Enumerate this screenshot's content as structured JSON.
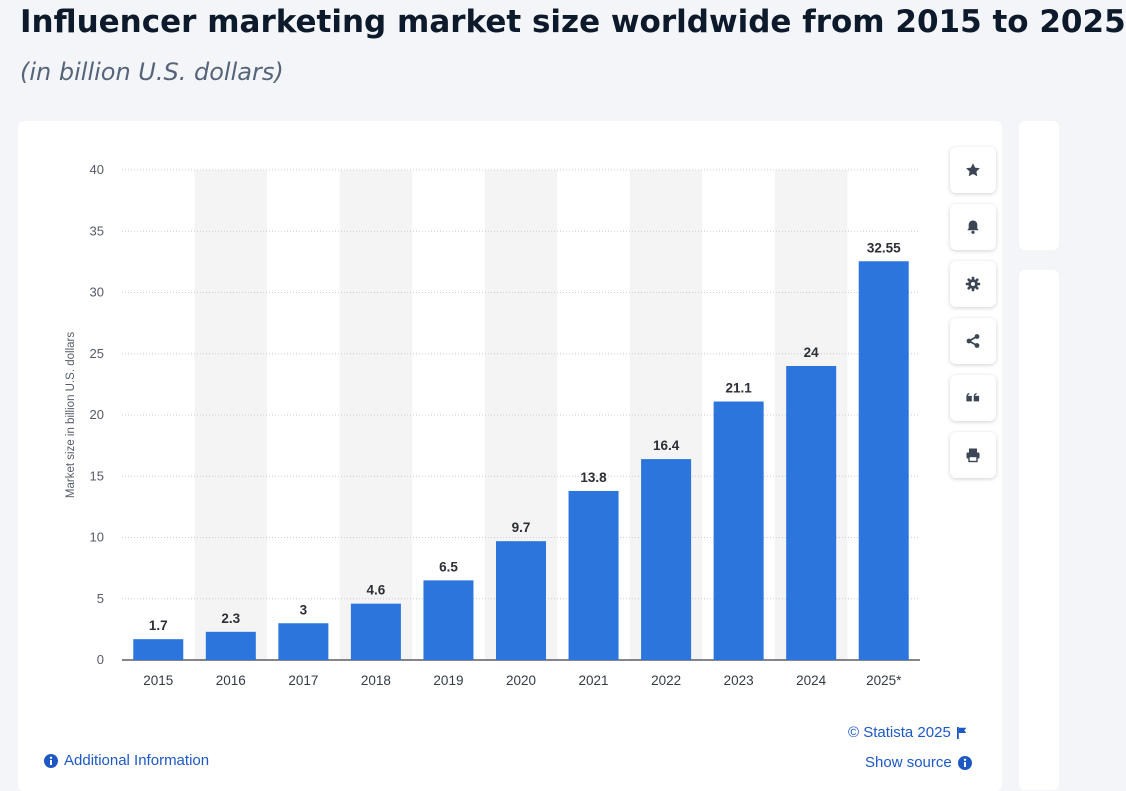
{
  "title": "Influencer marketing market size worldwide from 2015 to 2025",
  "subtitle": "(in billion U.S. dollars)",
  "colors": {
    "bar": "#2b75dc",
    "stripe": "#f4f4f4",
    "link": "#1d58c5"
  },
  "toolbar": [
    {
      "name": "star-button",
      "icon": "star-icon"
    },
    {
      "name": "notification-button",
      "icon": "bell-icon"
    },
    {
      "name": "settings-button",
      "icon": "gear-icon"
    },
    {
      "name": "share-button",
      "icon": "share-icon"
    },
    {
      "name": "cite-button",
      "icon": "quote-icon"
    },
    {
      "name": "print-button",
      "icon": "printer-icon"
    }
  ],
  "footer": {
    "copyright": "© Statista 2025",
    "show_source": "Show source",
    "additional_info": "Additional Information"
  },
  "chart_data": {
    "type": "bar",
    "categories": [
      "2015",
      "2016",
      "2017",
      "2018",
      "2019",
      "2020",
      "2021",
      "2022",
      "2023",
      "2024",
      "2025*"
    ],
    "values": [
      1.7,
      2.3,
      3,
      4.6,
      6.5,
      9.7,
      13.8,
      16.4,
      21.1,
      24,
      32.55
    ],
    "value_labels": [
      "1.7",
      "2.3",
      "3",
      "4.6",
      "6.5",
      "9.7",
      "13.8",
      "16.4",
      "21.1",
      "24",
      "32.55"
    ],
    "ylabel": "Market size in billion U.S. dollars",
    "xlabel": "",
    "ylim": [
      0,
      40
    ],
    "yticks": [
      0,
      5,
      10,
      15,
      20,
      25,
      30,
      35,
      40
    ],
    "grid": true,
    "legend": "none"
  }
}
